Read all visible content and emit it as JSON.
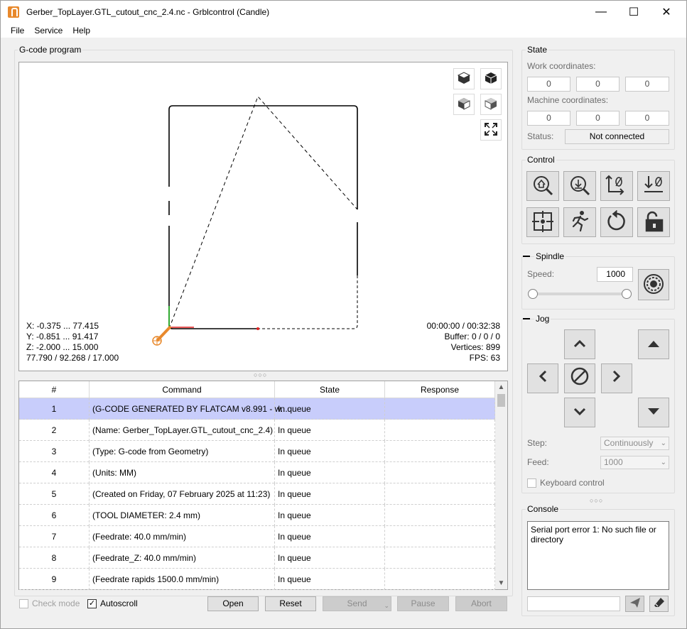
{
  "window": {
    "title": "Gerber_TopLayer.GTL_cutout_cnc_2.4.nc - Grblcontrol  (Candle)",
    "minimize": "—",
    "maximize": "☐",
    "close": "✕"
  },
  "menu": [
    "File",
    "Service",
    "Help"
  ],
  "gcode_panel": {
    "title": "G-code program",
    "info_left": [
      "X: -0.375 ... 77.415",
      "Y: -0.851 ... 91.417",
      "Z: -2.000 ... 15.000",
      "77.790 / 92.268 / 17.000"
    ],
    "info_right": [
      "00:00:00 / 00:32:38",
      "Buffer: 0 / 0 / 0",
      "Vertices: 899",
      "FPS: 63"
    ]
  },
  "table": {
    "headers": [
      "#",
      "Command",
      "State",
      "Response"
    ],
    "rows": [
      {
        "num": "1",
        "command": "(G-CODE GENERATED BY FLATCAM v8.991 - w...",
        "state": "In queue",
        "response": ""
      },
      {
        "num": "2",
        "command": "(Name: Gerber_TopLayer.GTL_cutout_cnc_2.4)",
        "state": "In queue",
        "response": ""
      },
      {
        "num": "3",
        "command": "(Type: G-code from Geometry)",
        "state": "In queue",
        "response": ""
      },
      {
        "num": "4",
        "command": "(Units: MM)",
        "state": "In queue",
        "response": ""
      },
      {
        "num": "5",
        "command": "(Created on Friday, 07 February 2025 at 11:23)",
        "state": "In queue",
        "response": ""
      },
      {
        "num": "6",
        "command": "(TOOL DIAMETER: 2.4 mm)",
        "state": "In queue",
        "response": ""
      },
      {
        "num": "7",
        "command": "(Feedrate: 40.0 mm/min)",
        "state": "In queue",
        "response": ""
      },
      {
        "num": "8",
        "command": "(Feedrate_Z: 40.0 mm/min)",
        "state": "In queue",
        "response": ""
      },
      {
        "num": "9",
        "command": "(Feedrate rapids 1500.0 mm/min)",
        "state": "In queue",
        "response": ""
      }
    ]
  },
  "bottom": {
    "check_mode": "Check mode",
    "autoscroll": "Autoscroll",
    "autoscroll_checked": true,
    "open": "Open",
    "reset": "Reset",
    "send": "Send",
    "pause": "Pause",
    "abort": "Abort"
  },
  "state_panel": {
    "title": "State",
    "work_label": "Work coordinates:",
    "work": [
      "0",
      "0",
      "0"
    ],
    "machine_label": "Machine coordinates:",
    "machine": [
      "0",
      "0",
      "0"
    ],
    "status_label": "Status:",
    "status_value": "Not connected"
  },
  "control_panel": {
    "title": "Control"
  },
  "spindle_panel": {
    "title": "Spindle",
    "speed_label": "Speed:",
    "speed_value": "1000",
    "slider_fraction": 1.0
  },
  "jog_panel": {
    "title": "Jog",
    "step_label": "Step:",
    "step_value": "Continuously",
    "feed_label": "Feed:",
    "feed_value": "1000",
    "keyboard_label": "Keyboard control"
  },
  "console_panel": {
    "title": "Console",
    "text": "Serial port error 1: No such file or directory",
    "input_value": ""
  },
  "colors": {
    "selected_row": "#c8cdfb",
    "toolpath": "#000000",
    "tool": "#e8892c",
    "x_axis": "#e02020",
    "y_axis": "#20c020"
  }
}
